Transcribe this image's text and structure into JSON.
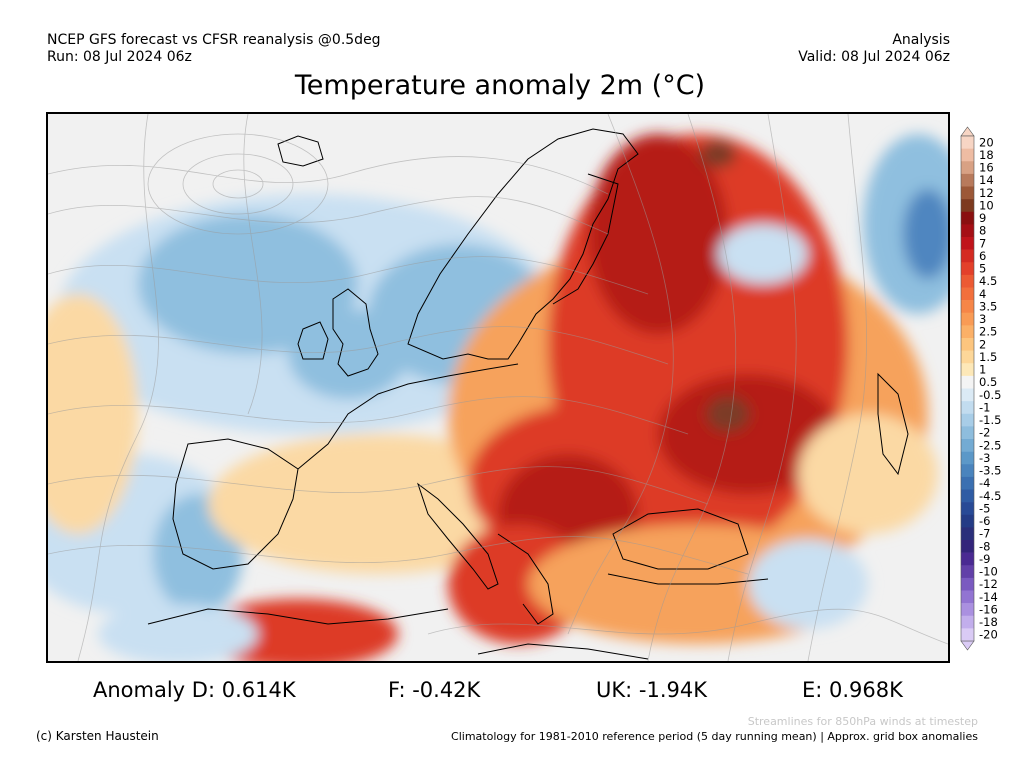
{
  "header": {
    "line1_left": "NCEP GFS forecast vs CFSR reanalysis @0.5deg",
    "line2_left": "Run: 08 Jul 2024 06z",
    "line1_right": "Analysis",
    "line2_right": "Valid: 08 Jul 2024 06z"
  },
  "title": "Temperature anomaly 2m (°C)",
  "stats": {
    "d": "Anomaly D: 0.614K",
    "f": "F: -0.42K",
    "uk": "UK: -1.94K",
    "e": "E: 0.968K"
  },
  "footer": {
    "copyright": "(c) Karsten Haustein",
    "streamlines": "Streamlines for 850hPa winds at timestep",
    "climatology": "Climatology for 1981-2010 reference period (5 day running mean) | Approx. grid box anomalies"
  },
  "colorbar": {
    "labels": [
      "20",
      "18",
      "16",
      "14",
      "12",
      "10",
      "9",
      "8",
      "7",
      "6",
      "5",
      "4.5",
      "4",
      "3.5",
      "3",
      "2.5",
      "2",
      "1.5",
      "1",
      "0.5",
      "-0.5",
      "-1",
      "-1.5",
      "-2",
      "-2.5",
      "-3",
      "-3.5",
      "-4",
      "-4.5",
      "-5",
      "-6",
      "-7",
      "-8",
      "-9",
      "-10",
      "-12",
      "-14",
      "-16",
      "-18",
      "-20"
    ],
    "colors": [
      "#f7d5c4",
      "#eebca3",
      "#d8a184",
      "#b87a5c",
      "#9c5838",
      "#7d3a1f",
      "#8a1010",
      "#a50f15",
      "#c0141b",
      "#d42b22",
      "#e3402a",
      "#ec5a33",
      "#f26f3c",
      "#f68648",
      "#f99b55",
      "#fbb067",
      "#fcc57e",
      "#fdd799",
      "#fde8b8",
      "#f4f4f4",
      "#dbeaf5",
      "#c2dcef",
      "#a8cde7",
      "#8ebddd",
      "#74abd3",
      "#5c98c8",
      "#4a84bd",
      "#3b70b1",
      "#2f5ca4",
      "#284a96",
      "#243c86",
      "#2a2f7a",
      "#33247a",
      "#4a2a92",
      "#6240a8",
      "#7a5ac0",
      "#9274d2",
      "#aa90e0",
      "#c2aeec",
      "#dacbf5"
    ]
  },
  "map_colors": {
    "ocean_neutral": "#f1f1f1",
    "cool_light": "#c9e0f2",
    "cool_mid": "#8fbfdf",
    "cool_dark": "#4f86c0",
    "warm_light": "#fbd9a4",
    "warm_mid": "#f6a25c",
    "hot": "#dd3b27",
    "very_hot": "#b51a16",
    "extreme": "#7b3a28",
    "coast": "#000000",
    "streamline": "#9a9a9a"
  }
}
